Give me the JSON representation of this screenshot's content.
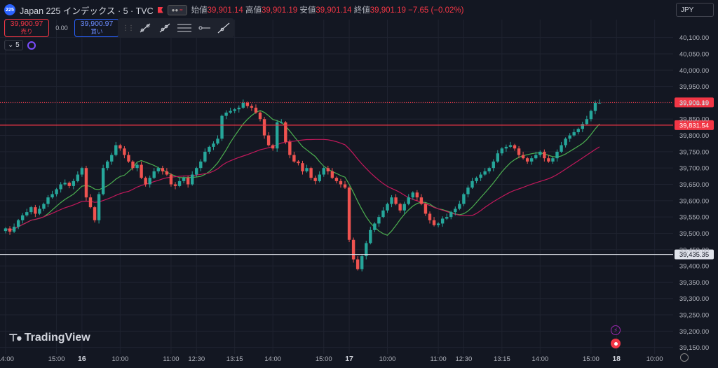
{
  "header": {
    "symbol_badge": "225",
    "symbol_name": "Japan 225 インデックス · 5 · TVC",
    "open_label": "始値",
    "open_value": "39,901.14",
    "high_label": "高値",
    "high_value": "39,901.19",
    "low_label": "安値",
    "low_value": "39,901.14",
    "close_label": "終値",
    "close_value": "39,901.19",
    "change": "−7.65 (−0.02%)"
  },
  "trade": {
    "sell_price": "39,900.97",
    "sell_label": "売り",
    "spread": "0.00",
    "buy_price": "39,900.97",
    "buy_label": "買い"
  },
  "interval": "5",
  "currency": "JPY",
  "brand": "TradingView",
  "colors": {
    "background": "#131722",
    "up": "#26a69a",
    "down": "#ef5350",
    "grid": "#1f2330",
    "axis_text": "#b2b5be",
    "ma_short": "#4caf50",
    "ma_long": "#c2185b",
    "sell": "#f23645",
    "buy": "#2962ff"
  },
  "icons": {
    "draw_tools": [
      "trend-line-icon",
      "ray-icon",
      "horizontal-lines-icon",
      "horizontal-ray-icon",
      "extended-line-icon"
    ],
    "settings": "gear-icon",
    "lightning": "lightning-icon",
    "alert": "record-icon",
    "axis_settings": "gear-icon"
  },
  "chart_data": {
    "type": "candlestick",
    "ylim": [
      39130,
      40155
    ],
    "y_ticks": [
      40100,
      40050,
      40000,
      39950,
      39900,
      39850,
      39800,
      39750,
      39700,
      39650,
      39600,
      39550,
      39500,
      39450,
      39400,
      39350,
      39300,
      39250,
      39200,
      39150
    ],
    "y_tick_labels": [
      "40,100.00",
      "40,050.00",
      "40,000.00",
      "39,950.00",
      "39,900.00",
      "39,850.00",
      "39,800.00",
      "39,750.00",
      "39,700.00",
      "39,650.00",
      "39,600.00",
      "39,550.00",
      "39,500.00",
      "39,450.00",
      "39,400.00",
      "39,350.00",
      "39,300.00",
      "39,250.00",
      "39,200.00",
      "39,150.00"
    ],
    "x_ticks": [
      {
        "label": "14:00",
        "bar": 0,
        "bold": false
      },
      {
        "label": "15:00",
        "bar": 12,
        "bold": false
      },
      {
        "label": "16",
        "bar": 18,
        "bold": true
      },
      {
        "label": "10:00",
        "bar": 27,
        "bold": false
      },
      {
        "label": "11:00",
        "bar": 39,
        "bold": false
      },
      {
        "label": "12:30",
        "bar": 45,
        "bold": false
      },
      {
        "label": "13:15",
        "bar": 54,
        "bold": false
      },
      {
        "label": "14:00",
        "bar": 63,
        "bold": false
      },
      {
        "label": "15:00",
        "bar": 75,
        "bold": false
      },
      {
        "label": "17",
        "bar": 81,
        "bold": true
      },
      {
        "label": "10:00",
        "bar": 90,
        "bold": false
      },
      {
        "label": "11:00",
        "bar": 102,
        "bold": false
      },
      {
        "label": "12:30",
        "bar": 108,
        "bold": false
      },
      {
        "label": "13:15",
        "bar": 117,
        "bold": false
      },
      {
        "label": "14:00",
        "bar": 126,
        "bold": false
      },
      {
        "label": "15:00",
        "bar": 138,
        "bold": false
      },
      {
        "label": "18",
        "bar": 144,
        "bold": true
      },
      {
        "label": "10:00",
        "bar": 153,
        "bold": false
      }
    ],
    "close_series": [
      39515,
      39505,
      39520,
      39540,
      39555,
      39565,
      39580,
      39560,
      39575,
      39590,
      39610,
      39620,
      39635,
      39650,
      39655,
      39645,
      39660,
      39680,
      39700,
      39610,
      39580,
      39540,
      39620,
      39700,
      39720,
      39740,
      39770,
      39760,
      39740,
      39720,
      39700,
      39710,
      39670,
      39650,
      39670,
      39690,
      39700,
      39690,
      39680,
      39650,
      39645,
      39660,
      39670,
      39650,
      39680,
      39700,
      39720,
      39750,
      39765,
      39775,
      39790,
      39860,
      39870,
      39875,
      39880,
      39885,
      39900,
      39890,
      39885,
      39870,
      39850,
      39800,
      39770,
      39760,
      39840,
      39840,
      39780,
      39740,
      39720,
      39715,
      39690,
      39700,
      39670,
      39660,
      39680,
      39700,
      39690,
      39670,
      39660,
      39650,
      39640,
      39480,
      39420,
      39390,
      39430,
      39470,
      39510,
      39530,
      39550,
      39570,
      39590,
      39610,
      39590,
      39570,
      39590,
      39610,
      39625,
      39610,
      39590,
      39560,
      39540,
      39525,
      39530,
      39545,
      39550,
      39565,
      39575,
      39590,
      39620,
      39640,
      39660,
      39670,
      39680,
      39690,
      39700,
      39720,
      39745,
      39760,
      39765,
      39770,
      39760,
      39740,
      39730,
      39720,
      39730,
      39740,
      39750,
      39730,
      39720,
      39730,
      39750,
      39770,
      39790,
      39800,
      39810,
      39820,
      39835,
      39850,
      39875,
      39900,
      39900
    ],
    "horizontal_levels": [
      {
        "value": 39901.19,
        "label": "39,901.19",
        "style": "dotted",
        "color": "#f23645"
      },
      {
        "value": 39831.54,
        "label": "39,831.54",
        "style": "solid",
        "color": "#f23645"
      },
      {
        "value": 39435.35,
        "label": "39,435.35",
        "style": "solid",
        "color": "#e0e3eb"
      }
    ],
    "ma_short": {
      "color": "#4caf50"
    },
    "ma_long": {
      "color": "#c2185b"
    }
  }
}
